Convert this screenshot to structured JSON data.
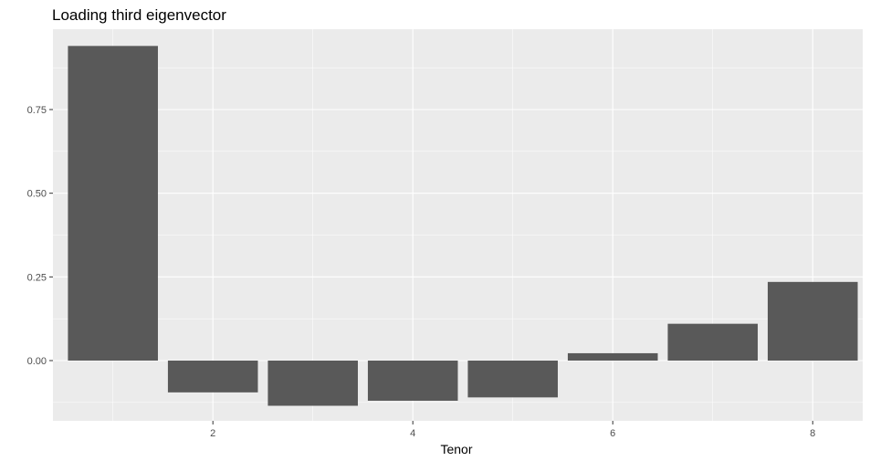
{
  "chart_data": {
    "type": "bar",
    "title": "Loading third eigenvector",
    "xlabel": "Tenor",
    "ylabel": "",
    "x": [
      1,
      2,
      3,
      4,
      5,
      6,
      7,
      8
    ],
    "values": [
      0.94,
      -0.095,
      -0.135,
      -0.12,
      -0.11,
      0.022,
      0.11,
      0.235
    ],
    "xlim": [
      0.4,
      8.5
    ],
    "ylim": [
      -0.18,
      0.99
    ],
    "x_ticks": [
      2,
      4,
      6,
      8
    ],
    "x_tick_labels": [
      "2",
      "4",
      "6",
      "8"
    ],
    "y_ticks": [
      0,
      0.25,
      0.5,
      0.75
    ],
    "y_tick_labels": [
      "0.00",
      "0.25",
      "0.50",
      "0.75"
    ],
    "grid": true,
    "bar_width": 0.9,
    "colors": {
      "panel": "#ebebeb",
      "grid_major": "#ffffff",
      "bar": "#595959",
      "tick_text": "#4d4d4d",
      "tick_mark": "#333333"
    }
  }
}
